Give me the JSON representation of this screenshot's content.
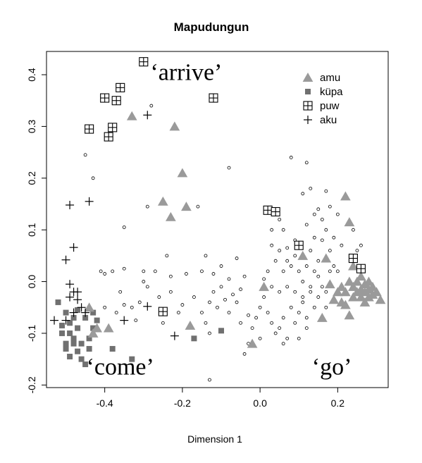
{
  "chart_data": {
    "type": "scatter",
    "title": "Mapudungun",
    "xlabel": "Dimension 1",
    "ylabel": "",
    "xlim": [
      -0.55,
      0.33
    ],
    "ylim": [
      -0.205,
      0.445
    ],
    "x_ticks": [
      -0.4,
      -0.2,
      0.0,
      0.2
    ],
    "x_tick_labels": [
      "-0.4",
      "-0.2",
      "0.0",
      "0.2"
    ],
    "y_ticks": [
      -0.2,
      -0.1,
      0.0,
      0.1,
      0.2,
      0.3,
      0.4
    ],
    "y_tick_labels": [
      "-0.2",
      "-0.1",
      "0.0",
      "0.1",
      "0.2",
      "0.3",
      "0.4"
    ],
    "legend_position": "top-right",
    "annotations": [
      {
        "text": "‘arrive’",
        "x": -0.19,
        "y": 0.39
      },
      {
        "text": "‘come’",
        "x": -0.36,
        "y": -0.18
      },
      {
        "text": "‘go’",
        "x": 0.185,
        "y": -0.18
      }
    ],
    "series": [
      {
        "name": "amu",
        "marker": "triangle",
        "color": "#9a9a9a",
        "points": [
          [
            -0.33,
            0.32
          ],
          [
            -0.22,
            0.3
          ],
          [
            -0.2,
            0.21
          ],
          [
            -0.25,
            0.155
          ],
          [
            -0.19,
            0.145
          ],
          [
            -0.23,
            0.125
          ],
          [
            -0.18,
            -0.085
          ],
          [
            -0.44,
            -0.05
          ],
          [
            -0.42,
            -0.09
          ],
          [
            -0.39,
            -0.09
          ],
          [
            -0.43,
            -0.1
          ],
          [
            -0.02,
            -0.12
          ],
          [
            0.01,
            -0.01
          ],
          [
            0.11,
            0.05
          ],
          [
            0.16,
            -0.07
          ],
          [
            0.22,
            0.165
          ],
          [
            0.23,
            0.115
          ],
          [
            0.23,
            -0.065
          ],
          [
            0.17,
            0.045
          ],
          [
            0.18,
            -0.005
          ],
          [
            0.2,
            -0.02
          ],
          [
            0.19,
            -0.035
          ],
          [
            0.21,
            -0.04
          ],
          [
            0.22,
            -0.02
          ],
          [
            0.24,
            -0.01
          ],
          [
            0.25,
            0.0
          ],
          [
            0.26,
            0.01
          ],
          [
            0.27,
            -0.005
          ],
          [
            0.28,
            0.0
          ],
          [
            0.25,
            -0.02
          ],
          [
            0.26,
            -0.03
          ],
          [
            0.27,
            -0.02
          ],
          [
            0.28,
            -0.03
          ],
          [
            0.29,
            -0.01
          ],
          [
            0.3,
            -0.02
          ],
          [
            0.31,
            -0.035
          ],
          [
            0.24,
            0.03
          ],
          [
            0.23,
            0.0
          ],
          [
            0.27,
            -0.04
          ],
          [
            0.22,
            -0.045
          ],
          [
            0.24,
            -0.03
          ],
          [
            0.26,
            -0.015
          ],
          [
            0.29,
            -0.025
          ],
          [
            0.21,
            -0.01
          ],
          [
            0.28,
            -0.015
          ]
        ]
      },
      {
        "name": "küpa",
        "marker": "square",
        "color": "#707070",
        "points": [
          [
            -0.52,
            -0.04
          ],
          [
            -0.5,
            -0.06
          ],
          [
            -0.49,
            -0.08
          ],
          [
            -0.51,
            -0.1
          ],
          [
            -0.5,
            -0.12
          ],
          [
            -0.49,
            -0.1
          ],
          [
            -0.48,
            -0.07
          ],
          [
            -0.5,
            -0.13
          ],
          [
            -0.47,
            -0.09
          ],
          [
            -0.46,
            -0.12
          ],
          [
            -0.44,
            -0.11
          ],
          [
            -0.43,
            -0.09
          ],
          [
            -0.45,
            -0.07
          ],
          [
            -0.46,
            -0.15
          ],
          [
            -0.49,
            -0.145
          ],
          [
            -0.44,
            -0.13
          ],
          [
            -0.48,
            -0.11
          ],
          [
            -0.38,
            -0.13
          ],
          [
            -0.33,
            -0.15
          ],
          [
            -0.17,
            -0.11
          ],
          [
            -0.1,
            -0.095
          ],
          [
            -0.45,
            -0.16
          ],
          [
            -0.47,
            -0.055
          ],
          [
            -0.42,
            -0.075
          ],
          [
            -0.51,
            -0.085
          ],
          [
            -0.48,
            -0.12
          ],
          [
            -0.43,
            -0.06
          ],
          [
            -0.47,
            -0.135
          ]
        ]
      },
      {
        "name": "puw",
        "marker": "boxplus",
        "color": "#000000",
        "points": [
          [
            -0.3,
            0.425
          ],
          [
            -0.36,
            0.375
          ],
          [
            -0.4,
            0.355
          ],
          [
            -0.37,
            0.35
          ],
          [
            -0.12,
            0.355
          ],
          [
            -0.44,
            0.295
          ],
          [
            -0.38,
            0.298
          ],
          [
            -0.39,
            0.28
          ],
          [
            0.02,
            0.138
          ],
          [
            0.04,
            0.135
          ],
          [
            0.1,
            0.07
          ],
          [
            0.24,
            0.045
          ],
          [
            0.26,
            0.025
          ],
          [
            -0.25,
            -0.058
          ]
        ]
      },
      {
        "name": "aku",
        "marker": "plus",
        "color": "#000000",
        "points": [
          [
            -0.29,
            0.322
          ],
          [
            -0.49,
            0.148
          ],
          [
            -0.44,
            0.155
          ],
          [
            -0.48,
            0.066
          ],
          [
            -0.5,
            0.042
          ],
          [
            -0.49,
            -0.005
          ],
          [
            -0.48,
            -0.02
          ],
          [
            -0.49,
            -0.03
          ],
          [
            -0.47,
            -0.035
          ],
          [
            -0.46,
            -0.05
          ],
          [
            -0.48,
            -0.06
          ],
          [
            -0.5,
            -0.075
          ],
          [
            -0.45,
            -0.06
          ],
          [
            -0.53,
            -0.075
          ],
          [
            -0.35,
            -0.075
          ],
          [
            -0.29,
            -0.048
          ],
          [
            -0.22,
            -0.105
          ],
          [
            -0.47,
            -0.02
          ]
        ]
      },
      {
        "name": "",
        "marker": "circle",
        "color": "#000000",
        "points": [
          [
            -0.28,
            0.34
          ],
          [
            -0.45,
            0.245
          ],
          [
            -0.43,
            0.2
          ],
          [
            -0.08,
            0.22
          ],
          [
            -0.16,
            0.145
          ],
          [
            -0.29,
            0.145
          ],
          [
            -0.35,
            0.105
          ],
          [
            -0.24,
            0.05
          ],
          [
            -0.41,
            0.02
          ],
          [
            -0.4,
            0.015
          ],
          [
            -0.38,
            0.02
          ],
          [
            -0.35,
            0.025
          ],
          [
            -0.3,
            0.02
          ],
          [
            -0.27,
            0.02
          ],
          [
            -0.23,
            0.01
          ],
          [
            -0.19,
            0.015
          ],
          [
            -0.15,
            0.02
          ],
          [
            -0.12,
            0.015
          ],
          [
            -0.06,
            0.045
          ],
          [
            -0.08,
            0.005
          ],
          [
            -0.1,
            -0.01
          ],
          [
            -0.12,
            -0.02
          ],
          [
            -0.13,
            -0.04
          ],
          [
            -0.11,
            -0.05
          ],
          [
            -0.09,
            -0.035
          ],
          [
            -0.07,
            -0.025
          ],
          [
            -0.06,
            -0.04
          ],
          [
            -0.08,
            -0.06
          ],
          [
            -0.15,
            -0.06
          ],
          [
            -0.17,
            -0.03
          ],
          [
            -0.2,
            -0.045
          ],
          [
            -0.23,
            -0.02
          ],
          [
            -0.26,
            -0.03
          ],
          [
            -0.29,
            -0.01
          ],
          [
            -0.31,
            -0.04
          ],
          [
            -0.33,
            -0.05
          ],
          [
            -0.35,
            -0.045
          ],
          [
            -0.37,
            -0.06
          ],
          [
            -0.4,
            -0.05
          ],
          [
            -0.32,
            -0.075
          ],
          [
            -0.14,
            -0.08
          ],
          [
            -0.13,
            -0.1
          ],
          [
            -0.04,
            -0.14
          ],
          [
            -0.03,
            -0.12
          ],
          [
            -0.02,
            -0.09
          ],
          [
            -0.01,
            -0.07
          ],
          [
            0.0,
            -0.05
          ],
          [
            0.01,
            -0.03
          ],
          [
            0.02,
            -0.06
          ],
          [
            0.03,
            -0.08
          ],
          [
            0.04,
            -0.1
          ],
          [
            0.05,
            -0.09
          ],
          [
            0.06,
            -0.07
          ],
          [
            0.07,
            -0.11
          ],
          [
            0.08,
            -0.05
          ],
          [
            0.09,
            -0.08
          ],
          [
            0.1,
            -0.06
          ],
          [
            0.11,
            -0.04
          ],
          [
            0.12,
            -0.07
          ],
          [
            0.13,
            -0.02
          ],
          [
            0.14,
            -0.05
          ],
          [
            0.15,
            -0.03
          ],
          [
            0.16,
            -0.01
          ],
          [
            0.02,
            0.02
          ],
          [
            0.04,
            0.04
          ],
          [
            0.05,
            0.06
          ],
          [
            0.06,
            0.02
          ],
          [
            0.07,
            0.04
          ],
          [
            0.08,
            0.03
          ],
          [
            0.09,
            0.05
          ],
          [
            0.1,
            0.02
          ],
          [
            0.11,
            0.0
          ],
          [
            0.12,
            0.03
          ],
          [
            0.13,
            0.06
          ],
          [
            0.14,
            0.02
          ],
          [
            0.15,
            0.04
          ],
          [
            0.16,
            0.08
          ],
          [
            0.17,
            0.1
          ],
          [
            0.18,
            0.06
          ],
          [
            0.19,
            0.03
          ],
          [
            0.2,
            0.02
          ],
          [
            0.21,
            0.07
          ],
          [
            0.03,
            -0.01
          ],
          [
            0.05,
            -0.02
          ],
          [
            0.07,
            -0.01
          ],
          [
            0.09,
            -0.02
          ],
          [
            0.11,
            -0.03
          ],
          [
            0.13,
            -0.01
          ],
          [
            0.15,
            0.01
          ],
          [
            0.17,
            -0.02
          ],
          [
            0.06,
            0.1
          ],
          [
            0.09,
            0.08
          ],
          [
            0.12,
            0.11
          ],
          [
            0.14,
            0.13
          ],
          [
            0.11,
            0.17
          ],
          [
            0.13,
            0.18
          ],
          [
            0.08,
            0.24
          ],
          [
            0.12,
            0.23
          ],
          [
            0.15,
            0.14
          ],
          [
            0.18,
            0.145
          ],
          [
            0.17,
            0.175
          ],
          [
            0.16,
            0.12
          ],
          [
            0.2,
            0.13
          ],
          [
            0.24,
            0.1
          ],
          [
            0.26,
            0.07
          ],
          [
            0.25,
            0.06
          ],
          [
            0.03,
            0.1
          ],
          [
            0.05,
            0.12
          ],
          [
            0.01,
            0.005
          ],
          [
            -0.04,
            0.01
          ],
          [
            -0.05,
            -0.015
          ],
          [
            -0.03,
            -0.065
          ],
          [
            -0.05,
            -0.08
          ],
          [
            0.0,
            -0.11
          ],
          [
            -0.1,
            0.03
          ],
          [
            -0.14,
            0.05
          ],
          [
            -0.3,
            0.0
          ],
          [
            -0.21,
            -0.06
          ],
          [
            -0.25,
            -0.08
          ],
          [
            -0.36,
            -0.02
          ],
          [
            0.06,
            -0.12
          ],
          [
            0.1,
            -0.11
          ],
          [
            -0.13,
            -0.19
          ],
          [
            0.03,
            0.07
          ],
          [
            0.07,
            0.065
          ],
          [
            0.18,
            0.02
          ],
          [
            0.14,
            0.085
          ],
          [
            0.19,
            0.085
          ],
          [
            0.12,
            -0.09
          ],
          [
            0.17,
            -0.05
          ]
        ]
      }
    ]
  }
}
